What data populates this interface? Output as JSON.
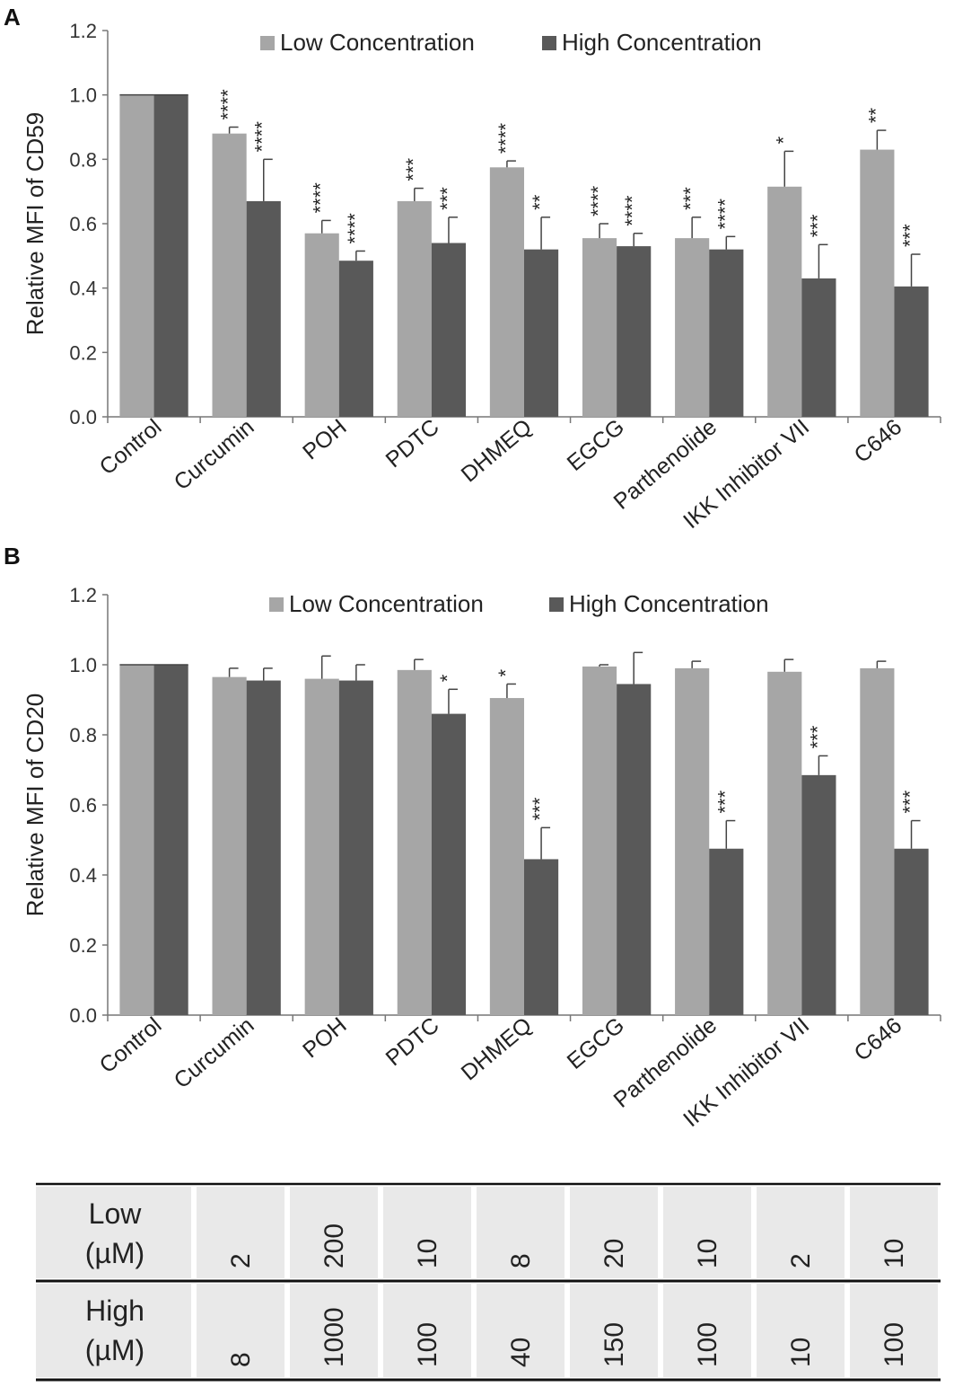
{
  "colors": {
    "low": "#a6a6a6",
    "high": "#595959",
    "axis": "#777777",
    "table_bg": "#e9e9e9"
  },
  "chart_data": [
    {
      "type": "bar",
      "panel": "A",
      "ylabel": "Relative MFI of CD59",
      "ylim": [
        0,
        1.2
      ],
      "yticks": [
        "0.0",
        "0.2",
        "0.4",
        "0.6",
        "0.8",
        "1.0",
        "1.2"
      ],
      "categories": [
        "Control",
        "Curcumin",
        "POH",
        "PDTC",
        "DHMEQ",
        "EGCG",
        "Parthenolide",
        "IKK Inhibitor VII",
        "C646"
      ],
      "series": [
        {
          "name": "Low Concentration",
          "values": [
            1.0,
            0.88,
            0.57,
            0.67,
            0.775,
            0.555,
            0.555,
            0.715,
            0.83
          ],
          "errors": [
            0.0,
            0.02,
            0.04,
            0.04,
            0.02,
            0.045,
            0.065,
            0.11,
            0.06
          ],
          "significance": [
            "",
            "****",
            "****",
            "***",
            "****",
            "****",
            "***",
            "*",
            "**"
          ]
        },
        {
          "name": "High Concentration",
          "values": [
            1.0,
            0.67,
            0.485,
            0.54,
            0.52,
            0.53,
            0.52,
            0.43,
            0.405
          ],
          "errors": [
            0.0,
            0.13,
            0.03,
            0.08,
            0.1,
            0.04,
            0.04,
            0.105,
            0.1
          ],
          "significance": [
            "",
            "****",
            "****",
            "***",
            "**",
            "****",
            "****",
            "***",
            "***"
          ]
        }
      ]
    },
    {
      "type": "bar",
      "panel": "B",
      "ylabel": "Relative MFI of CD20",
      "ylim": [
        0,
        1.2
      ],
      "yticks": [
        "0.0",
        "0.2",
        "0.4",
        "0.6",
        "0.8",
        "1.0",
        "1.2"
      ],
      "categories": [
        "Control",
        "Curcumin",
        "POH",
        "PDTC",
        "DHMEQ",
        "EGCG",
        "Parthenolide",
        "IKK Inhibitor VII",
        "C646"
      ],
      "series": [
        {
          "name": "Low Concentration",
          "values": [
            1.0,
            0.965,
            0.96,
            0.985,
            0.905,
            0.995,
            0.99,
            0.98,
            0.99
          ],
          "errors": [
            0.0,
            0.025,
            0.065,
            0.03,
            0.04,
            0.005,
            0.02,
            0.035,
            0.02
          ],
          "significance": [
            "",
            "",
            "",
            "",
            "*",
            "",
            "",
            "",
            ""
          ]
        },
        {
          "name": "High Concentration",
          "values": [
            1.0,
            0.955,
            0.955,
            0.86,
            0.445,
            0.945,
            0.475,
            0.685,
            0.475
          ],
          "errors": [
            0.0,
            0.035,
            0.045,
            0.07,
            0.09,
            0.09,
            0.08,
            0.055,
            0.08
          ],
          "significance": [
            "",
            "",
            "",
            "*",
            "***",
            "",
            "***",
            "***",
            "***"
          ]
        }
      ]
    }
  ],
  "table": {
    "rows": [
      {
        "label_line1": "Low",
        "label_line2": "(µM)",
        "values": [
          "2",
          "200",
          "10",
          "8",
          "20",
          "10",
          "2",
          "10"
        ]
      },
      {
        "label_line1": "High",
        "label_line2": "(µM)",
        "values": [
          "8",
          "1000",
          "100",
          "40",
          "150",
          "100",
          "10",
          "100"
        ]
      }
    ]
  }
}
